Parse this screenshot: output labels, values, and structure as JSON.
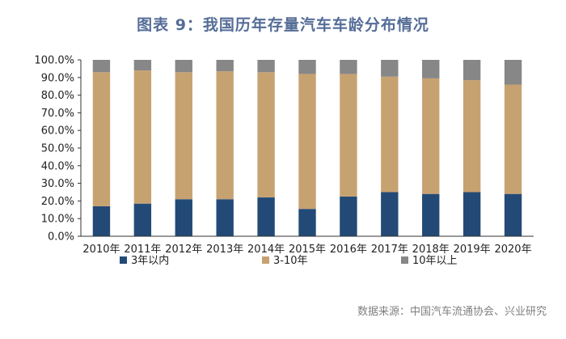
{
  "title": "图表 9：我国历年存量汽车车龄分布情况",
  "source": "数据来源：中国汽车流通协会、兴业研究",
  "chart_data": {
    "type": "bar",
    "stacked": true,
    "categories": [
      "2010年",
      "2011年",
      "2012年",
      "2013年",
      "2014年",
      "2015年",
      "2016年",
      "2017年",
      "2018年",
      "2019年",
      "2020年"
    ],
    "series": [
      {
        "name": "3年以内",
        "color": "#234a76",
        "values": [
          17,
          18.5,
          21,
          21,
          22,
          15.5,
          22.5,
          25,
          24,
          25,
          24
        ]
      },
      {
        "name": "3-10年",
        "color": "#c7a271",
        "values": [
          76,
          75.5,
          72,
          72.5,
          71,
          76.5,
          69.5,
          65.5,
          65.5,
          63.5,
          62
        ]
      },
      {
        "name": "10年以上",
        "color": "#878787",
        "values": [
          7,
          6,
          7,
          6.5,
          7,
          8,
          8,
          9.5,
          10.5,
          11.5,
          14
        ]
      }
    ],
    "ylim": [
      0,
      100
    ],
    "yticks": [
      "0.0%",
      "10.0%",
      "20.0%",
      "30.0%",
      "40.0%",
      "50.0%",
      "60.0%",
      "70.0%",
      "80.0%",
      "90.0%",
      "100.0%"
    ],
    "legend_position": "bottom"
  }
}
